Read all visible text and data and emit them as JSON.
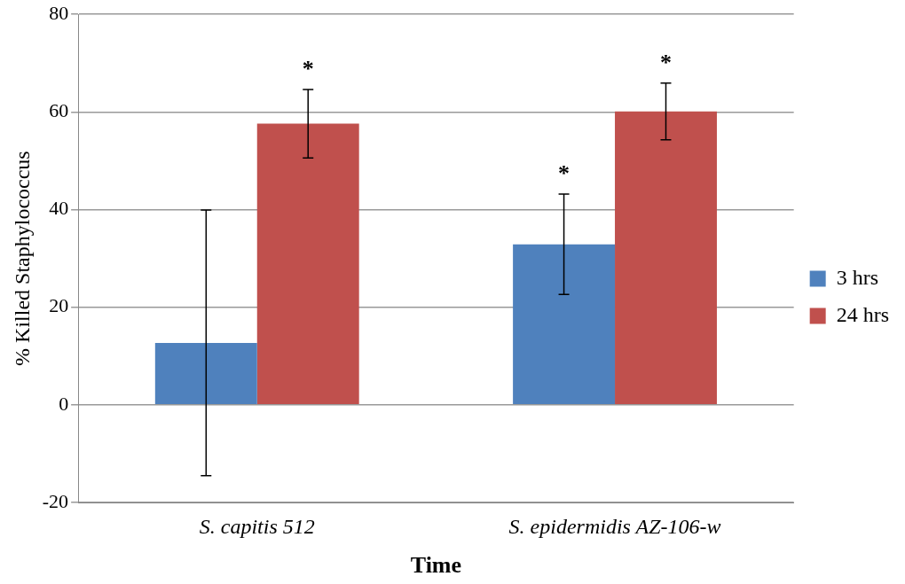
{
  "chart_data": {
    "type": "bar",
    "xlabel": "Time",
    "ylabel": "% Killed Staphylococcus",
    "categories": [
      "S. capitis 512",
      "S. epidermidis AZ-106-w"
    ],
    "series": [
      {
        "name": "3 hrs",
        "color": "#4f81bd",
        "values": [
          12.7,
          32.9
        ],
        "errors": [
          27.2,
          10.3
        ]
      },
      {
        "name": "24 hrs",
        "color": "#c0504d",
        "values": [
          57.6,
          60.1
        ],
        "errors": [
          7.0,
          5.8
        ]
      }
    ],
    "ylim": [
      -20,
      80
    ],
    "yticks": [
      -20,
      0,
      20,
      40,
      60,
      80
    ],
    "grid": "y",
    "legend": "right",
    "annotations": [
      "*",
      "*",
      "*"
    ]
  }
}
